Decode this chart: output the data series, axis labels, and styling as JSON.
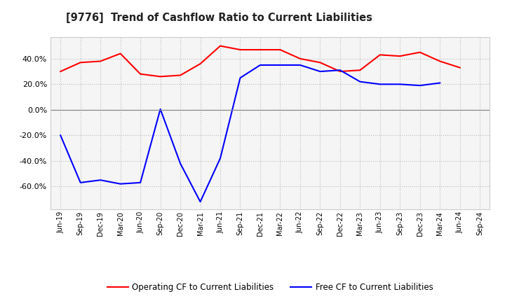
{
  "title": "[9776]  Trend of Cashflow Ratio to Current Liabilities",
  "x_labels": [
    "Jun-19",
    "Sep-19",
    "Dec-19",
    "Mar-20",
    "Jun-20",
    "Sep-20",
    "Dec-20",
    "Mar-21",
    "Jun-21",
    "Sep-21",
    "Dec-21",
    "Mar-22",
    "Jun-22",
    "Sep-22",
    "Dec-22",
    "Mar-23",
    "Jun-23",
    "Sep-23",
    "Dec-23",
    "Mar-24",
    "Jun-24",
    "Sep-24"
  ],
  "operating_cf": [
    30.0,
    37.0,
    38.0,
    44.0,
    28.0,
    26.0,
    27.0,
    36.0,
    50.0,
    47.0,
    47.0,
    47.0,
    40.0,
    37.0,
    30.0,
    31.0,
    43.0,
    42.0,
    45.0,
    38.0,
    33.0,
    null
  ],
  "free_cf": [
    -20.0,
    -57.0,
    -55.0,
    -58.0,
    -57.0,
    0.5,
    -42.0,
    -72.0,
    -38.0,
    25.0,
    35.0,
    35.0,
    35.0,
    30.0,
    31.0,
    22.0,
    20.0,
    20.0,
    19.0,
    21.0,
    null,
    null
  ],
  "operating_color": "#ff0000",
  "free_color": "#0000ff",
  "ylim": [
    -78,
    57
  ],
  "yticks": [
    -60.0,
    -40.0,
    -20.0,
    0.0,
    20.0,
    40.0
  ],
  "background_color": "#ffffff",
  "plot_bg_color": "#f5f5f5",
  "grid_color": "#bbbbbb",
  "legend_labels": [
    "Operating CF to Current Liabilities",
    "Free CF to Current Liabilities"
  ]
}
